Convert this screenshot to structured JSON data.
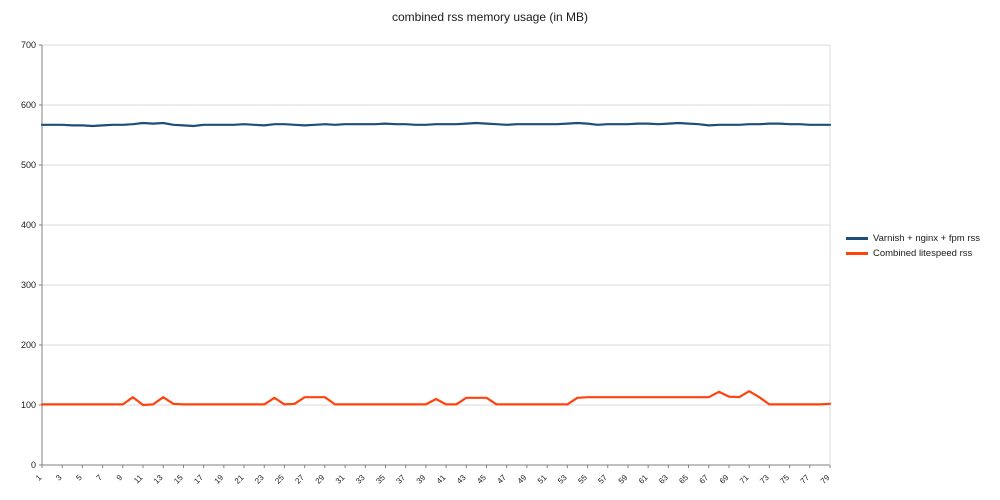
{
  "title": "combined rss memory usage (in MB)",
  "colors": {
    "series1": "#1F4E79",
    "series2": "#FF420E",
    "gridline": "#d9d9d9",
    "axis": "#808080",
    "label_text": "#1a1a1a"
  },
  "legend": {
    "items": [
      {
        "label": "Varnish + nginx + fpm rss",
        "color": "#1F4E79"
      },
      {
        "label": "Combined litespeed rss",
        "color": "#FF420E"
      }
    ]
  },
  "chart_data": {
    "type": "line",
    "title": "combined rss memory usage (in MB)",
    "xlabel": "",
    "ylabel": "",
    "ylim": [
      0,
      700
    ],
    "yticks": [
      0,
      100,
      200,
      300,
      400,
      500,
      600,
      700
    ],
    "xtick_step": 2,
    "grid": true,
    "legend_position": "right",
    "x": [
      1,
      2,
      3,
      4,
      5,
      6,
      7,
      8,
      9,
      10,
      11,
      12,
      13,
      14,
      15,
      16,
      17,
      18,
      19,
      20,
      21,
      22,
      23,
      24,
      25,
      26,
      27,
      28,
      29,
      30,
      31,
      32,
      33,
      34,
      35,
      36,
      37,
      38,
      39,
      40,
      41,
      42,
      43,
      44,
      45,
      46,
      47,
      48,
      49,
      50,
      51,
      52,
      53,
      54,
      55,
      56,
      57,
      58,
      59,
      60,
      61,
      62,
      63,
      64,
      65,
      66,
      67,
      68,
      69,
      70,
      71,
      72,
      73,
      74,
      75,
      76,
      77,
      78,
      79
    ],
    "series": [
      {
        "name": "Varnish + nginx + fpm rss",
        "color": "#1F4E79",
        "values": [
          567,
          567,
          567,
          566,
          566,
          565,
          566,
          567,
          567,
          568,
          570,
          569,
          570,
          567,
          566,
          565,
          567,
          567,
          567,
          567,
          568,
          567,
          566,
          568,
          568,
          567,
          566,
          567,
          568,
          567,
          568,
          568,
          568,
          568,
          569,
          568,
          568,
          567,
          567,
          568,
          568,
          568,
          569,
          570,
          569,
          568,
          567,
          568,
          568,
          568,
          568,
          568,
          569,
          570,
          569,
          567,
          568,
          568,
          568,
          569,
          569,
          568,
          569,
          570,
          569,
          568,
          566,
          567,
          567,
          567,
          568,
          568,
          569,
          569,
          568,
          568,
          567,
          567,
          567
        ]
      },
      {
        "name": "Combined litespeed rss",
        "color": "#FF420E",
        "values": [
          101,
          101,
          101,
          101,
          101,
          101,
          101,
          101,
          101,
          113,
          100,
          101,
          113,
          102,
          101,
          101,
          101,
          101,
          101,
          101,
          101,
          101,
          101,
          112,
          101,
          102,
          113,
          113,
          113,
          101,
          101,
          101,
          101,
          101,
          101,
          101,
          101,
          101,
          101,
          110,
          101,
          101,
          112,
          112,
          112,
          101,
          101,
          101,
          101,
          101,
          101,
          101,
          101,
          112,
          113,
          113,
          113,
          113,
          113,
          113,
          113,
          113,
          113,
          113,
          113,
          113,
          113,
          122,
          114,
          113,
          123,
          113,
          101,
          101,
          101,
          101,
          101,
          101,
          102
        ]
      }
    ]
  }
}
